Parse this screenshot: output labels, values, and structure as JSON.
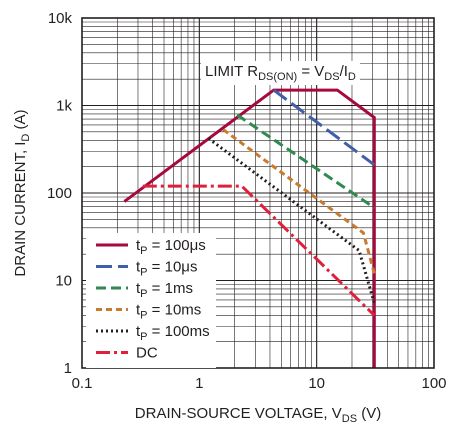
{
  "chart_data": {
    "type": "line",
    "x_scale": "log",
    "y_scale": "log",
    "xlim": [
      0.1,
      100
    ],
    "ylim": [
      1,
      10000
    ],
    "xlabel": {
      "main": "DRAIN-SOURCE VOLTAGE, V",
      "sub": "DS",
      "unit": " (V)"
    },
    "ylabel": {
      "main": "DRAIN CURRENT, I",
      "sub": "D",
      "unit": " (A)"
    },
    "x_ticks": [
      {
        "value": 0.1,
        "label": "0.1"
      },
      {
        "value": 1,
        "label": "1"
      },
      {
        "value": 10,
        "label": "10"
      },
      {
        "value": 100,
        "label": "100"
      }
    ],
    "y_ticks": [
      {
        "value": 1,
        "label": "1"
      },
      {
        "value": 10,
        "label": "10"
      },
      {
        "value": 100,
        "label": "100"
      },
      {
        "value": 1000,
        "label": "1k"
      },
      {
        "value": 10000,
        "label": "10k"
      }
    ],
    "grid": true,
    "annotation": {
      "parts": [
        {
          "text": "LIMIT R",
          "sub": false
        },
        {
          "text": "DS(ON)",
          "sub": true
        },
        {
          "text": " = V",
          "sub": false
        },
        {
          "text": "DS",
          "sub": true
        },
        {
          "text": "/I",
          "sub": false
        },
        {
          "text": "D",
          "sub": true
        }
      ]
    },
    "legend_position": "bottom-left",
    "series": [
      {
        "name": "tP = 100μs",
        "name_main": "t",
        "name_sub": "P",
        "name_rest": " = 100μs",
        "color": "#a6093d",
        "dash": "",
        "points": [
          [
            0.23,
            80
          ],
          [
            4.3,
            1500
          ],
          [
            15,
            1500
          ],
          [
            31,
            730
          ],
          [
            31,
            1
          ]
        ]
      },
      {
        "name": "tP = 10μs",
        "name_main": "t",
        "name_sub": "P",
        "name_rest": " = 10μs",
        "color": "#3f5fa8",
        "dash": "16,6",
        "points": [
          [
            4.3,
            1500
          ],
          [
            31,
            210
          ]
        ]
      },
      {
        "name": "tP = 1ms",
        "name_main": "t",
        "name_sub": "P",
        "name_rest": " = 1ms",
        "color": "#2e8b4f",
        "dash": "10,5",
        "points": [
          [
            2.1,
            780
          ],
          [
            31,
            68
          ]
        ]
      },
      {
        "name": "tP = 10ms",
        "name_main": "t",
        "name_sub": "P",
        "name_rest": " = 10ms",
        "color": "#c87a2e",
        "dash": "6,4",
        "points": [
          [
            1.6,
            530
          ],
          [
            25,
            35
          ],
          [
            31,
            12
          ]
        ]
      },
      {
        "name": "tP = 100ms",
        "name_main": "t",
        "name_sub": "P",
        "name_rest": " = 100ms",
        "color": "#231f20",
        "dash": "2,3",
        "points": [
          [
            1.2,
            420
          ],
          [
            23,
            22
          ],
          [
            31,
            5.5
          ]
        ]
      },
      {
        "name": "DC",
        "name_main": "DC",
        "name_sub": "",
        "name_rest": "",
        "color": "#e0203a",
        "dash": "14,4,3,4",
        "points": [
          [
            0.33,
            120
          ],
          [
            2.3,
            120
          ],
          [
            31,
            4
          ]
        ]
      }
    ]
  }
}
